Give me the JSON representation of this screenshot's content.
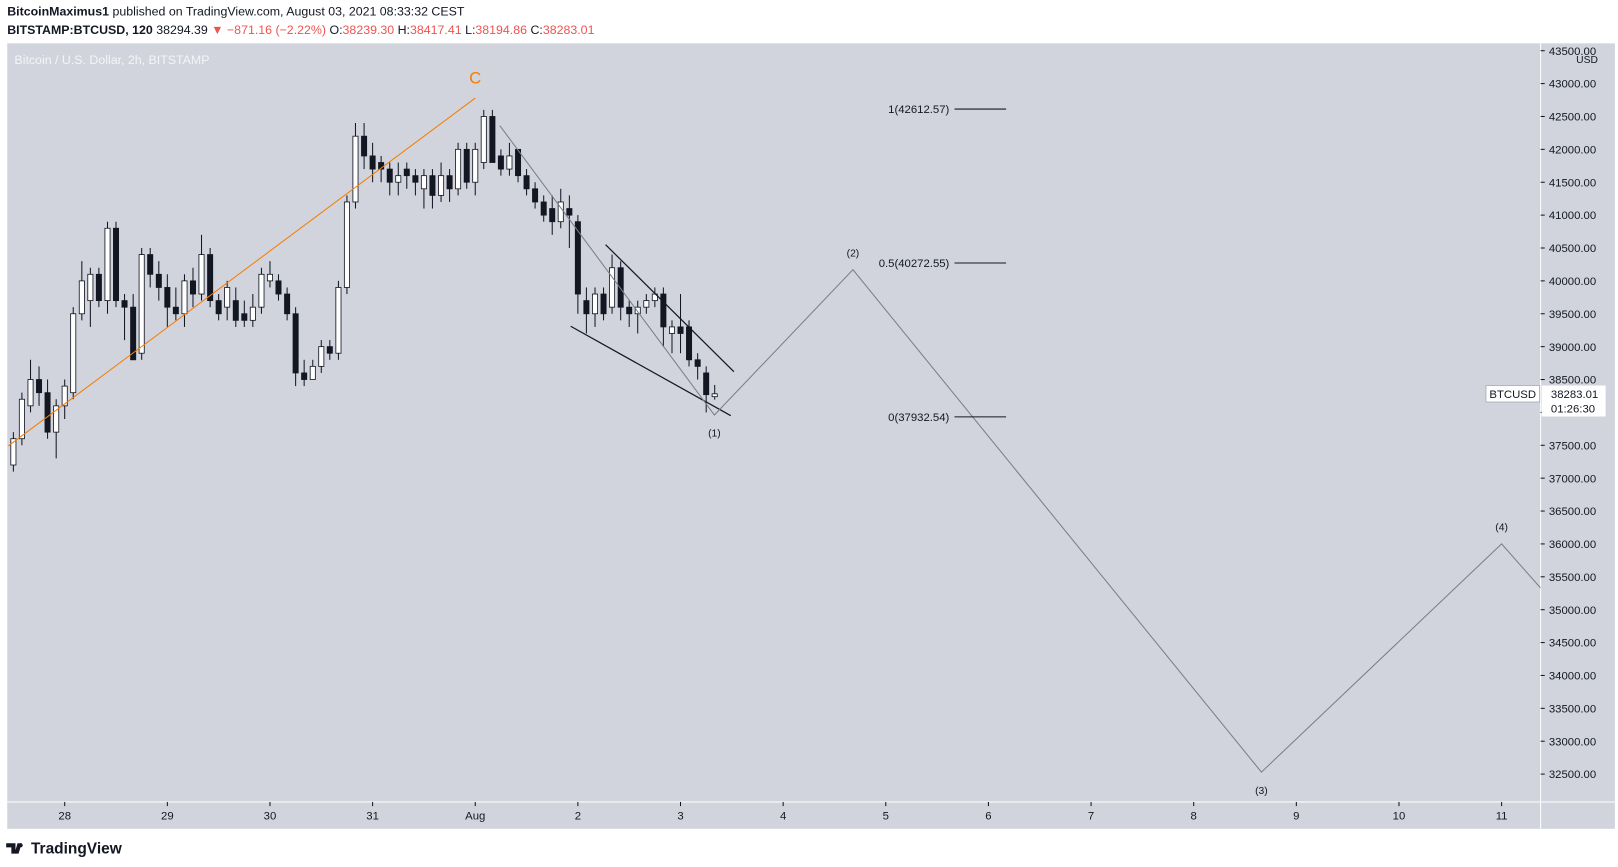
{
  "page": {
    "publisher": "BitcoinMaximus1",
    "published_text": "published on TradingView.com, August 03, 2021 08:33:32 CEST",
    "symbol": "BITSTAMP:BTCUSD, 120",
    "last": "38294.39",
    "change": "▼ −871.16 (−2.22%)",
    "open_label": "O:",
    "open": "38239.30",
    "high_label": "H:",
    "high": "38417.41",
    "low_label": "L:",
    "low": "38194.86",
    "close_label": "C:",
    "close": "38283.01",
    "footer": "TradingView"
  },
  "chart_data": {
    "type": "candlestick",
    "title": "Bitcoin / U.S. Dollar, 2h, BITSTAMP",
    "y_axis_label": "USD",
    "xlim": [
      27.44,
      42.38
    ],
    "ylim": [
      32076,
      43612
    ],
    "xticks": [
      28,
      29,
      30,
      31,
      {
        "value": 32,
        "label": "Aug"
      },
      {
        "value": 33,
        "label": "2"
      },
      {
        "value": 34,
        "label": "3"
      },
      {
        "value": 35,
        "label": "4"
      },
      {
        "value": 36,
        "label": "5"
      },
      {
        "value": 37,
        "label": "6"
      },
      {
        "value": 38,
        "label": "7"
      },
      {
        "value": 39,
        "label": "8"
      },
      {
        "value": 40,
        "label": "9"
      },
      {
        "value": 41,
        "label": "10"
      },
      {
        "value": 42,
        "label": "11"
      }
    ],
    "yticks": [
      {
        "value": 32500,
        "label": "32500.00"
      },
      {
        "value": 33000,
        "label": "33000.00"
      },
      {
        "value": 33500,
        "label": "33500.00"
      },
      {
        "value": 34000,
        "label": "34000.00"
      },
      {
        "value": 34500,
        "label": "34500.00"
      },
      {
        "value": 35000,
        "label": "35000.00"
      },
      {
        "value": 35500,
        "label": "35500.00"
      },
      {
        "value": 36000,
        "label": "36000.00"
      },
      {
        "value": 36500,
        "label": "36500.00"
      },
      {
        "value": 37000,
        "label": "37000.00"
      },
      {
        "value": 37500,
        "label": "37500.00"
      },
      {
        "value": 38000,
        "label": "38000.00"
      },
      {
        "value": 38500,
        "label": "38500.00"
      },
      {
        "value": 39000,
        "label": "39000.00"
      },
      {
        "value": 39500,
        "label": "39500.00"
      },
      {
        "value": 40000,
        "label": "40000.00"
      },
      {
        "value": 40500,
        "label": "40500.00"
      },
      {
        "value": 41000,
        "label": "41000.00"
      },
      {
        "value": 41500,
        "label": "41500.00"
      },
      {
        "value": 42000,
        "label": "42000.00"
      },
      {
        "value": 42500,
        "label": "42500.00"
      },
      {
        "value": 43000,
        "label": "43000.00"
      },
      {
        "value": 43500,
        "label": "43500.00"
      }
    ],
    "background": "#d1d4dc",
    "up_color": "#ffffff",
    "down_color": "#131722",
    "x": [
      27.5,
      27.583,
      27.667,
      27.75,
      27.833,
      27.917,
      28,
      28.083,
      28.167,
      28.25,
      28.333,
      28.417,
      28.5,
      28.583,
      28.667,
      28.75,
      28.833,
      28.917,
      29,
      29.083,
      29.167,
      29.25,
      29.333,
      29.417,
      29.5,
      29.583,
      29.667,
      29.75,
      29.833,
      29.917,
      30,
      30.083,
      30.167,
      30.25,
      30.333,
      30.417,
      30.5,
      30.583,
      30.667,
      30.75,
      30.833,
      30.917,
      31,
      31.083,
      31.167,
      31.25,
      31.333,
      31.417,
      31.5,
      31.583,
      31.667,
      31.75,
      31.833,
      31.917,
      32,
      32.083,
      32.167,
      32.25,
      32.333,
      32.417,
      32.5,
      32.583,
      32.667,
      32.75,
      32.833,
      32.917,
      33,
      33.083,
      33.167,
      33.25,
      33.333,
      33.417,
      33.5,
      33.583,
      33.667,
      33.75,
      33.833,
      33.917,
      34,
      34.083,
      34.167,
      34.25,
      34.333
    ],
    "open": [
      37200,
      37600,
      38100,
      38500,
      38300,
      37700,
      38100,
      38300,
      39500,
      39700,
      40100,
      39700,
      40800,
      39700,
      39600,
      38900,
      40400,
      40100,
      39900,
      39600,
      39500,
      40000,
      39800,
      40400,
      39700,
      39600,
      39700,
      39500,
      39400,
      39600,
      40000,
      40000,
      39800,
      39500,
      38600,
      38500,
      38700,
      39000,
      38900,
      39900,
      41200,
      42200,
      41900,
      41800,
      41700,
      41500,
      41700,
      41600,
      41400,
      41600,
      41300,
      41600,
      41400,
      42000,
      41500,
      41800,
      42500,
      41900,
      41700,
      42000,
      41600,
      41400,
      41200,
      41100,
      40900,
      41100,
      40900,
      39700,
      39500,
      39800,
      39600,
      40200,
      39600,
      39500,
      39600,
      39700,
      39800,
      39200,
      39300,
      39300,
      38800,
      38600,
      38239.3
    ],
    "high": [
      37700,
      38300,
      38800,
      38700,
      38500,
      38200,
      38500,
      39600,
      40300,
      40200,
      40200,
      40900,
      40900,
      39800,
      39800,
      40500,
      40500,
      40300,
      40100,
      39900,
      40100,
      40200,
      40700,
      40500,
      39800,
      40000,
      39900,
      39700,
      39800,
      40200,
      40300,
      40100,
      39900,
      39600,
      38800,
      38800,
      39100,
      39100,
      40000,
      41300,
      42400,
      42400,
      42100,
      41900,
      41800,
      41800,
      41800,
      41700,
      41700,
      41700,
      41800,
      41700,
      42100,
      42100,
      42100,
      42600,
      42600,
      42000,
      42100,
      42000,
      41700,
      41500,
      41300,
      41300,
      41400,
      41300,
      41000,
      39900,
      39900,
      39900,
      40400,
      40300,
      39700,
      39700,
      39800,
      39900,
      39900,
      39400,
      39800,
      39400,
      38900,
      38700,
      38417.41
    ],
    "low": [
      37100,
      37500,
      38000,
      38100,
      37600,
      37300,
      37900,
      38200,
      39400,
      39300,
      39600,
      39500,
      39600,
      39100,
      38800,
      38800,
      39900,
      39700,
      39300,
      39400,
      39300,
      39600,
      39700,
      39600,
      39400,
      39400,
      39300,
      39300,
      39300,
      39500,
      39900,
      39700,
      39400,
      38400,
      38400,
      38500,
      38600,
      38800,
      38800,
      39800,
      41100,
      41700,
      41500,
      41500,
      41300,
      41300,
      41400,
      41300,
      41100,
      41100,
      41200,
      41200,
      41300,
      41400,
      41300,
      41700,
      41800,
      41600,
      41600,
      41500,
      41300,
      41100,
      40900,
      40700,
      40800,
      40500,
      39500,
      39200,
      39300,
      39400,
      39500,
      39400,
      39300,
      39200,
      39500,
      39600,
      39000,
      38900,
      38900,
      38700,
      38500,
      38000,
      38194.86
    ],
    "close": [
      37600,
      38200,
      38500,
      38300,
      37700,
      38100,
      38400,
      39500,
      40000,
      40100,
      39700,
      40800,
      39700,
      39600,
      38800,
      40400,
      40100,
      39900,
      39600,
      39500,
      40000,
      39800,
      40400,
      39700,
      39500,
      39900,
      39400,
      39400,
      39600,
      40100,
      40100,
      39800,
      39500,
      38600,
      38500,
      38700,
      39000,
      38900,
      39900,
      41200,
      42200,
      41900,
      41700,
      41700,
      41500,
      41600,
      41600,
      41500,
      41600,
      41300,
      41600,
      41400,
      42000,
      41500,
      42000,
      42500,
      41800,
      41700,
      41900,
      41600,
      41400,
      41200,
      41000,
      40900,
      41200,
      41000,
      39800,
      39500,
      39800,
      39500,
      40200,
      39600,
      39500,
      39600,
      39700,
      39800,
      39300,
      39300,
      39200,
      38800,
      38700,
      38270,
      38283.01
    ],
    "wave_c": {
      "label": "C",
      "color": "#f57c00",
      "x": [
        27.45,
        32.0
      ],
      "y": [
        37490,
        42780
      ]
    },
    "trendlines": [
      {
        "color": "#131722",
        "x": [
          33.27,
          34.52
        ],
        "y": [
          40550,
          38620
        ]
      },
      {
        "color": "#131722",
        "x": [
          32.93,
          34.49
        ],
        "y": [
          39310,
          37950
        ]
      }
    ],
    "projection": {
      "color": "#7b7e87",
      "x": [
        32.24,
        34.33,
        35.68,
        39.66,
        42.0,
        42.38
      ],
      "y": [
        42360,
        37960,
        40170,
        32530,
        36000,
        35330
      ],
      "labels": [
        null,
        "(1)",
        "(2)",
        "(3)",
        "(4)",
        null
      ]
    },
    "fib_levels": [
      {
        "label": "1(42612.57)",
        "value": 42612.57
      },
      {
        "label": "0.5(40272.55)",
        "value": 40272.55
      },
      {
        "label": "0(37932.54)",
        "value": 37932.54
      }
    ],
    "price_label": {
      "name": "BTCUSD",
      "value": 38283.01,
      "countdown": "01:26:30"
    }
  }
}
